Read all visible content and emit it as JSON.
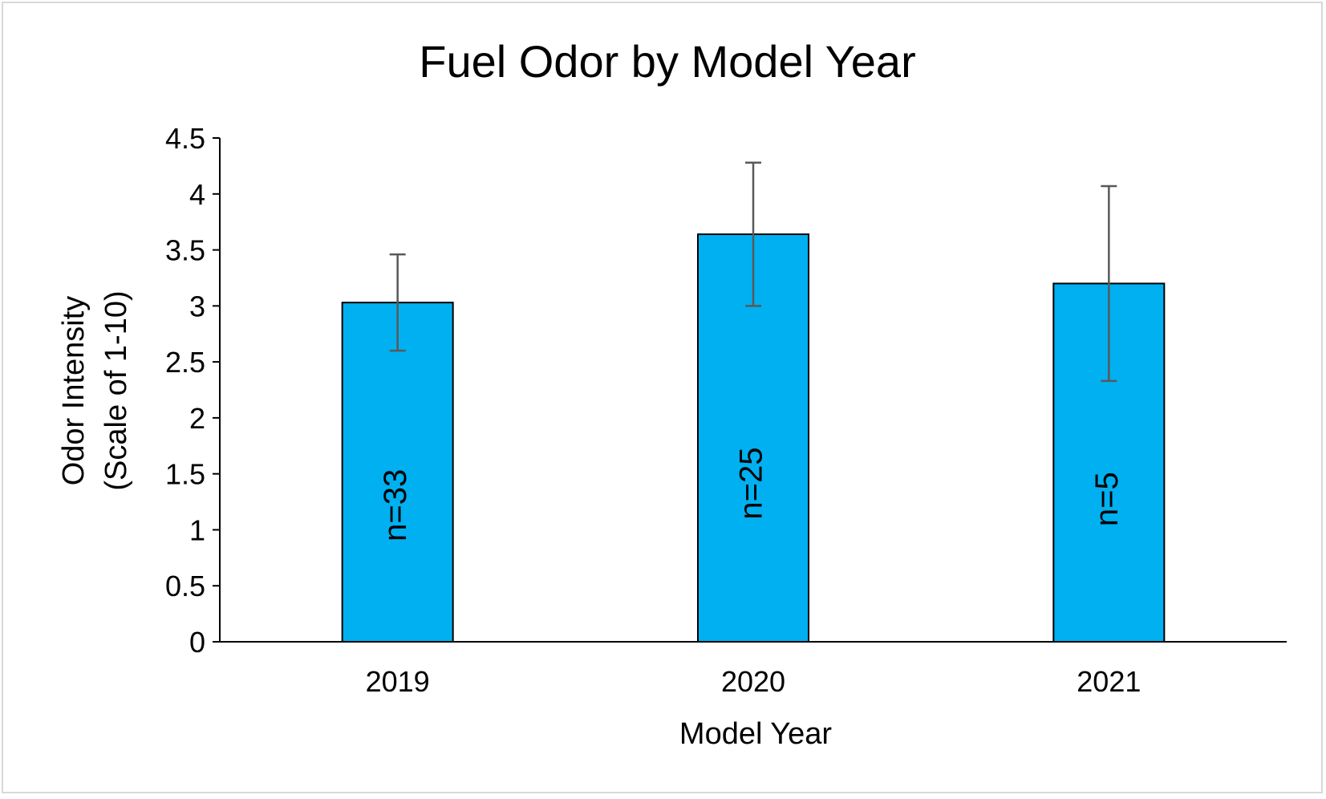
{
  "chart_data": {
    "type": "bar",
    "title": "Fuel Odor by Model Year",
    "xlabel": "Model Year",
    "ylabel_lines": [
      "Odor Intensity",
      "(Scale of 1-10)"
    ],
    "categories": [
      "2019",
      "2020",
      "2021"
    ],
    "values": [
      3.03,
      3.64,
      3.2
    ],
    "error_low": [
      2.6,
      3.0,
      2.33
    ],
    "error_high": [
      3.46,
      4.28,
      4.07
    ],
    "bar_labels": [
      "n=33",
      "n=25",
      "n=5"
    ],
    "ylim": [
      0,
      4.5
    ],
    "yticks": [
      "0",
      "0.5",
      "1",
      "1.5",
      "2",
      "2.5",
      "3",
      "3.5",
      "4",
      "4.5"
    ],
    "grid": false,
    "legend": "none",
    "colors": {
      "bar": "#00b0f0",
      "bar_edge": "#000000",
      "error_bar": "#595959",
      "axis": "#000000"
    }
  }
}
